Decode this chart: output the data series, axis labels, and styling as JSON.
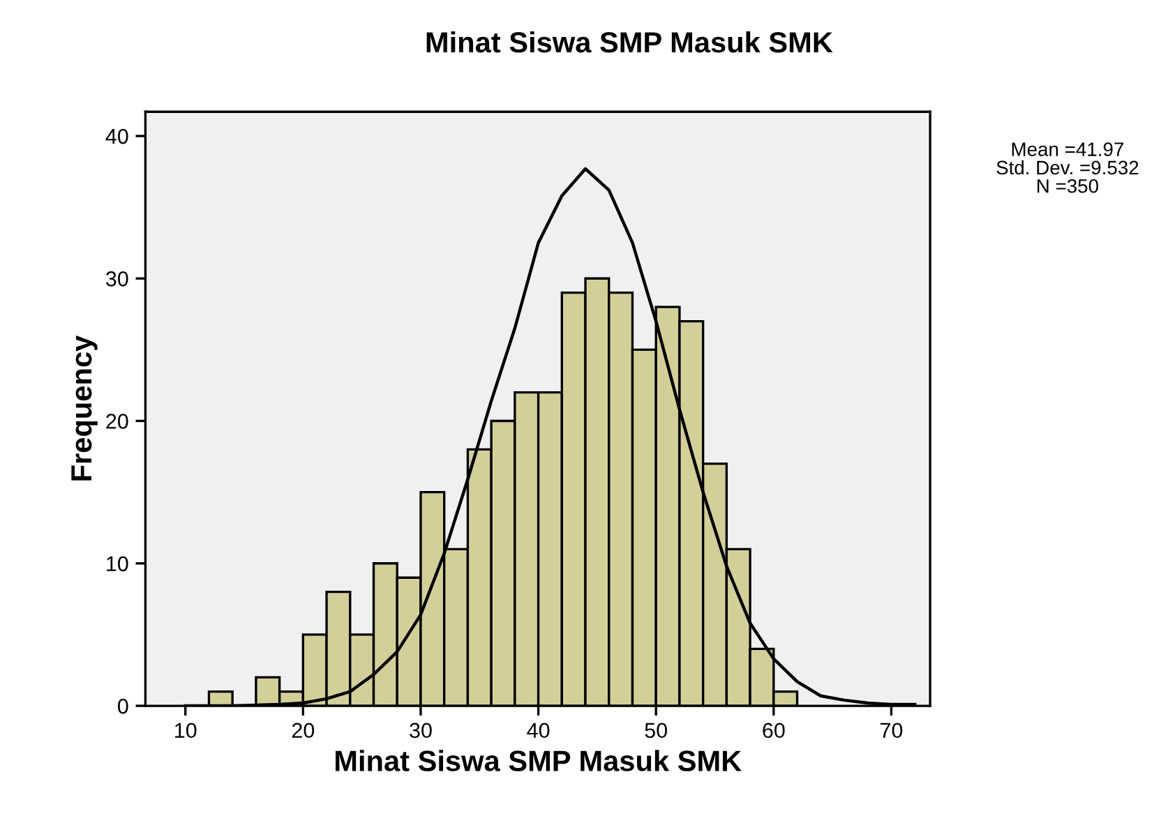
{
  "chart_data": {
    "type": "histogram",
    "title": "Minat Siswa SMP Masuk SMK",
    "xlabel": "Minat Siswa SMP Masuk SMK",
    "ylabel": "Frequency",
    "bins": [
      12,
      14,
      16,
      18,
      20,
      22,
      24,
      26,
      28,
      30,
      32,
      34,
      36,
      38,
      40,
      42,
      44,
      46,
      48,
      50,
      52,
      54,
      56,
      58,
      60,
      62
    ],
    "values": [
      1,
      0,
      2,
      1,
      5,
      8,
      5,
      10,
      9,
      15,
      11,
      18,
      20,
      22,
      22,
      29,
      30,
      29,
      25,
      28,
      27,
      17,
      11,
      4,
      1
    ],
    "color": "#d3cf99",
    "series": [
      {
        "type": "line",
        "color": "#000000",
        "x": [
          10,
          14,
          18,
          20,
          22,
          24,
          26,
          28,
          30,
          32,
          34,
          36,
          38,
          40,
          42,
          44,
          46,
          48,
          50,
          52,
          54,
          56,
          58,
          60,
          62,
          64,
          66,
          68,
          70,
          72
        ],
        "values": [
          0,
          0,
          0.1,
          0.2,
          0.5,
          1.0,
          2.2,
          3.8,
          6.4,
          10.7,
          15.9,
          21.4,
          26.5,
          32.5,
          35.8,
          37.7,
          36.2,
          32.5,
          27.0,
          20.8,
          15.0,
          9.8,
          5.8,
          3.3,
          1.7,
          0.7,
          0.4,
          0.2,
          0.1,
          0.1
        ]
      }
    ],
    "xlim": [
      6.6,
      73.3
    ],
    "ylim": [
      0,
      41.7
    ],
    "xticks": [
      10,
      20,
      30,
      40,
      50,
      60,
      70
    ],
    "yticks": [
      0,
      10,
      20,
      30,
      40
    ],
    "grid": false,
    "annotations": [
      "Mean =41.97",
      "Std. Dev. =9.532",
      "N =350"
    ]
  }
}
